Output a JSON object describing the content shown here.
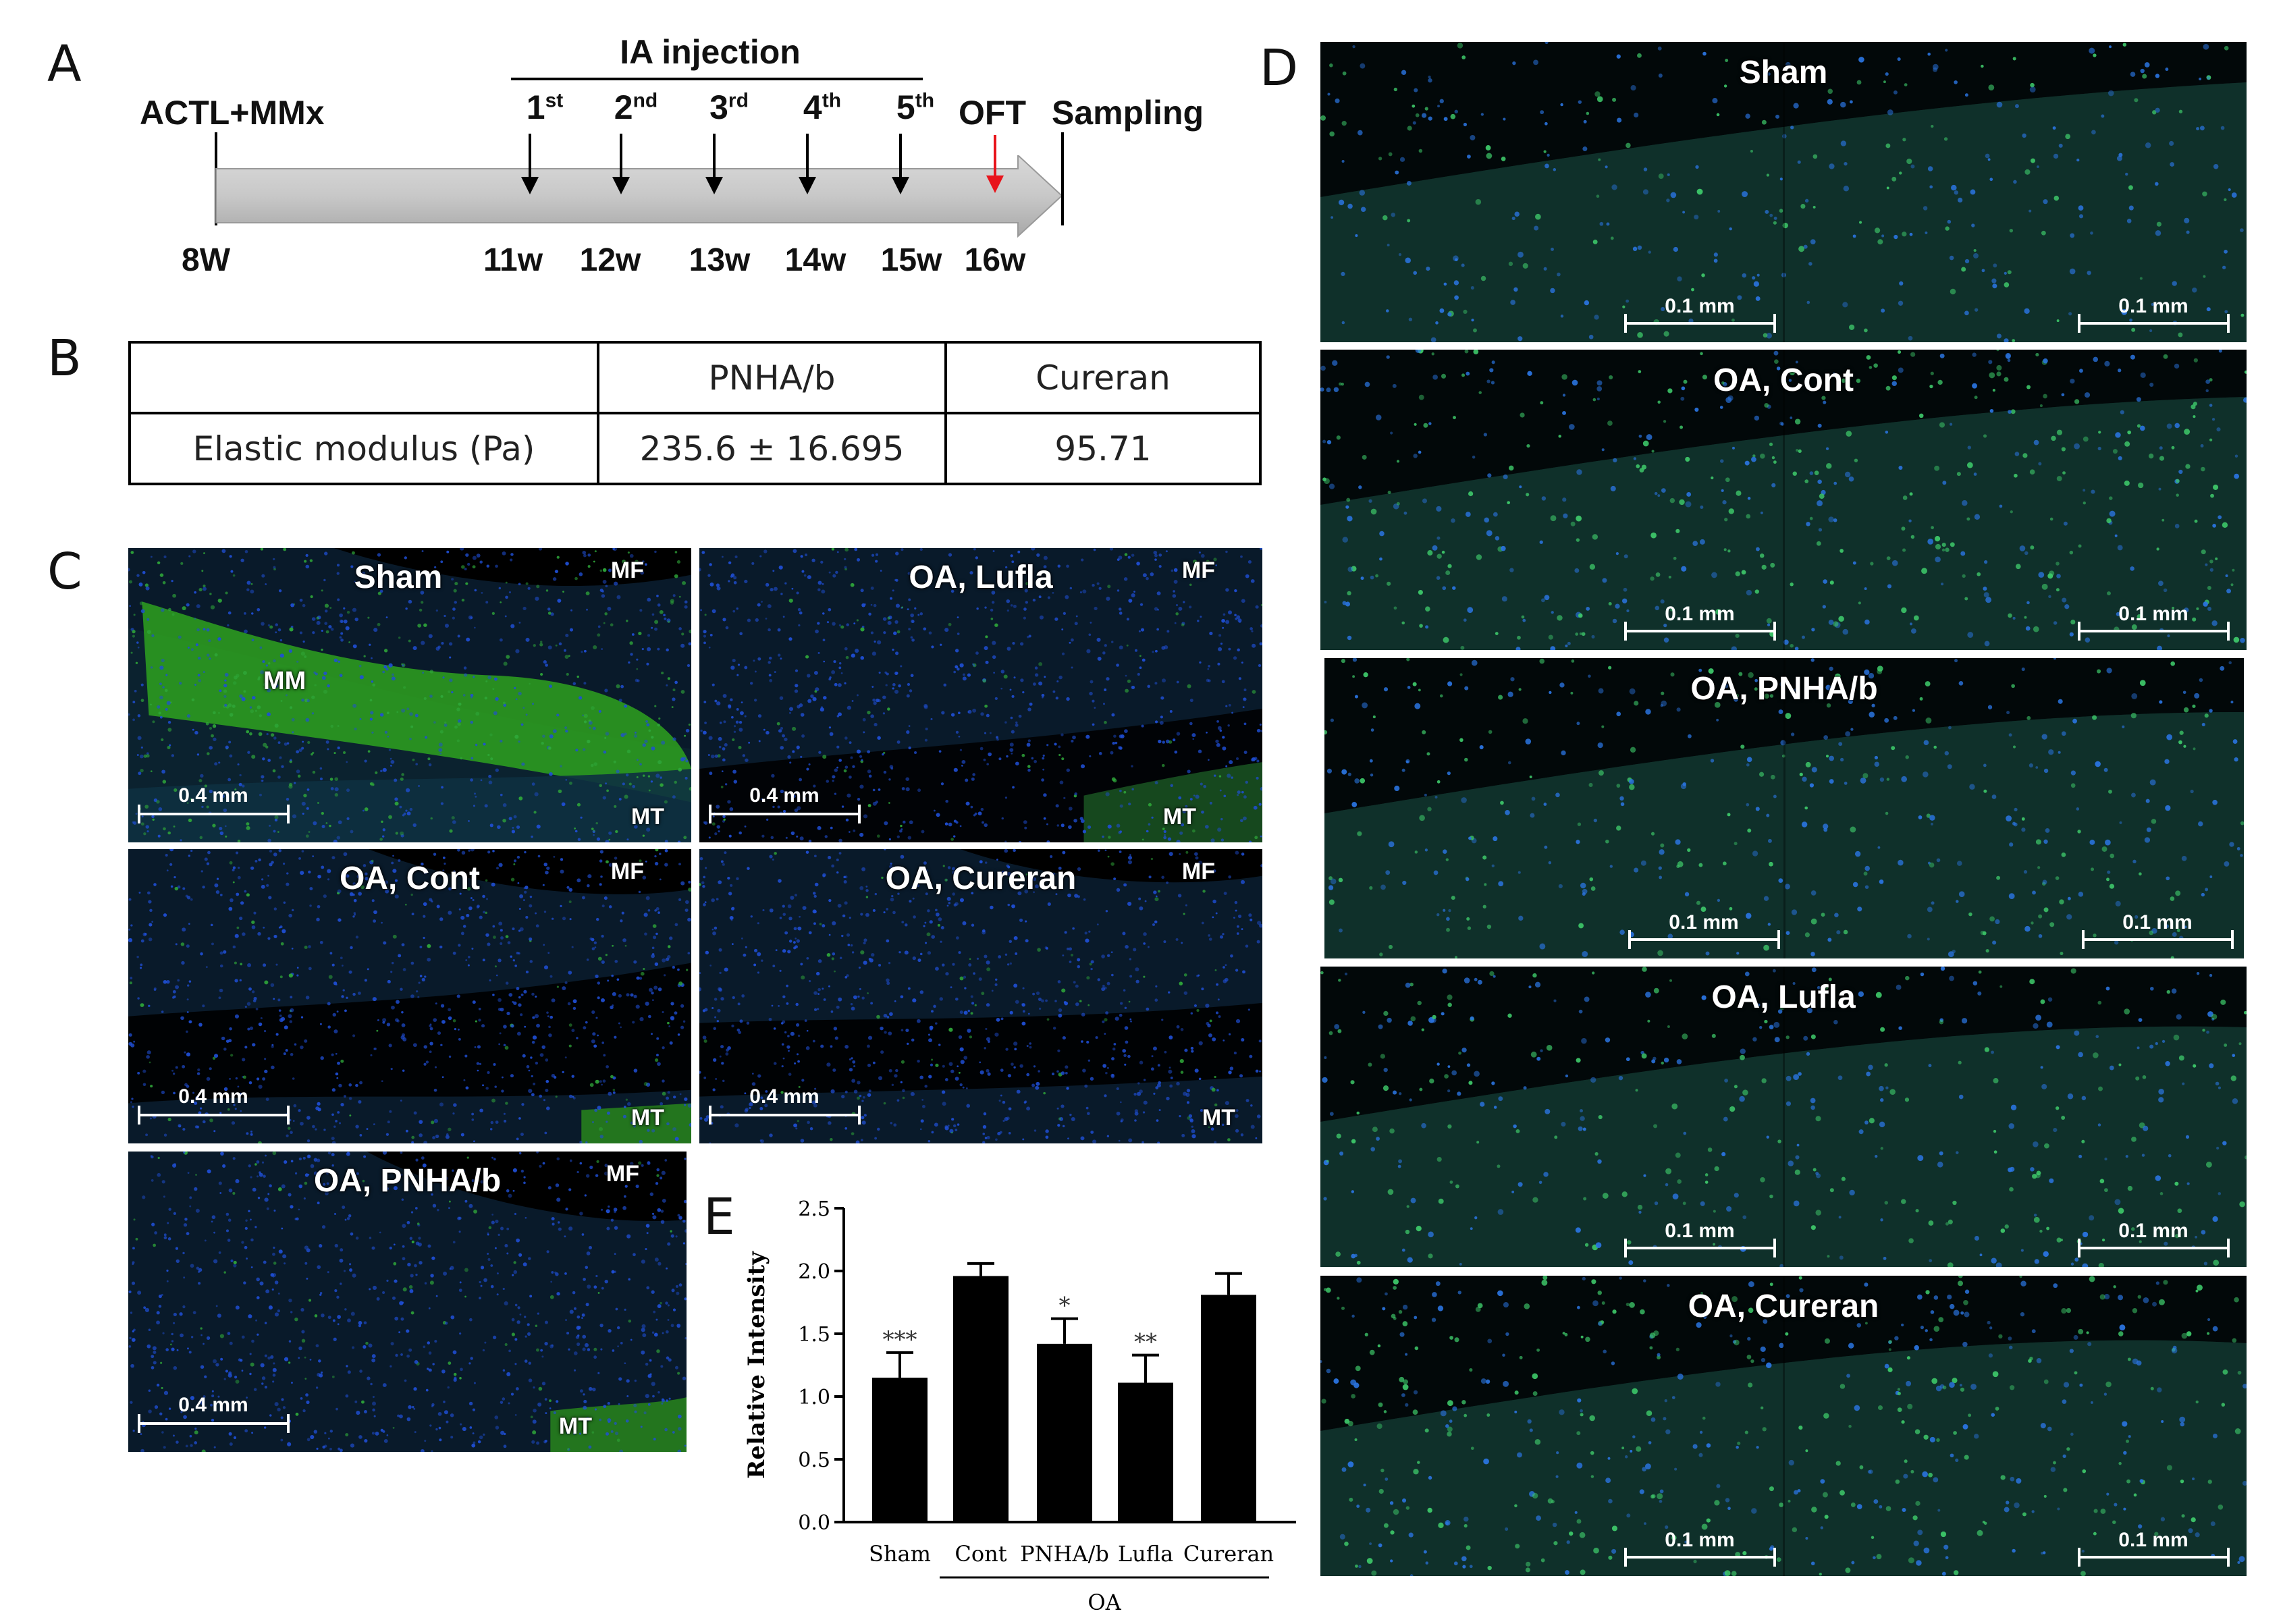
{
  "panels": {
    "a": "A",
    "b": "B",
    "c": "C",
    "d": "D",
    "e": "E"
  },
  "timeline": {
    "surgery": "ACTL+MMx",
    "injection_title": "IA injection",
    "injections": [
      {
        "num": "1",
        "sup": "st",
        "week": "11w"
      },
      {
        "num": "2",
        "sup": "nd",
        "week": "12w"
      },
      {
        "num": "3",
        "sup": "rd",
        "week": "13w"
      },
      {
        "num": "4",
        "sup": "th",
        "week": "14w"
      },
      {
        "num": "5",
        "sup": "th",
        "week": "15w"
      }
    ],
    "oft": "OFT",
    "oft_week": "16w",
    "sampling": "Sampling",
    "start_week": "8W",
    "oft_arrow_color": "#e8141b"
  },
  "table": {
    "headers": [
      "",
      "PNHA/b",
      "Cureran"
    ],
    "row_label": "Elastic modulus (Pa)",
    "values": [
      "235.6 ± 16.695",
      "95.71"
    ]
  },
  "panel_c": [
    {
      "title": "Sham",
      "mf": "MF",
      "mm": "MM",
      "mt": "MT",
      "scale": "0.4 mm",
      "tex": "sham"
    },
    {
      "title": "OA, Lufla",
      "mf": "MF",
      "mt": "MT",
      "scale": "0.4 mm",
      "tex": "lufla"
    },
    {
      "title": "OA, Cont",
      "mf": "MF",
      "mt": "MT",
      "scale": "0.4 mm",
      "tex": "cont"
    },
    {
      "title": "OA, Cureran",
      "mf": "MF",
      "mt": "MT",
      "scale": "0.4 mm",
      "tex": "cureran"
    },
    {
      "title": "OA, PNHA/b",
      "mf": "MF",
      "mt": "MT",
      "scale": "0.4 mm",
      "tex": "pnha"
    }
  ],
  "panel_d": [
    {
      "title": "Sham",
      "scale": "0.1 mm",
      "density": 0.35
    },
    {
      "title": "OA, Cont",
      "scale": "0.1 mm",
      "density": 0.9
    },
    {
      "title": "OA, PNHA/b",
      "scale": "0.1 mm",
      "density": 0.6
    },
    {
      "title": "OA, Lufla",
      "scale": "0.1 mm",
      "density": 0.55
    },
    {
      "title": "OA, Cureran",
      "scale": "0.1 mm",
      "density": 0.85
    }
  ],
  "chart_data": {
    "type": "bar",
    "categories": [
      "Sham",
      "Cont",
      "PNHA/b",
      "Lufla",
      "Cureran"
    ],
    "values": [
      1.15,
      1.96,
      1.42,
      1.11,
      1.81
    ],
    "errors": [
      0.2,
      0.1,
      0.2,
      0.22,
      0.17
    ],
    "significance": [
      "***",
      "",
      "*",
      "**",
      ""
    ],
    "group_label": "OA",
    "ylabel": "Relative Intensity",
    "xlabel": "",
    "ylim": [
      0,
      2.5
    ],
    "yticks": [
      "0.0",
      "0.5",
      "1.0",
      "1.5",
      "2.0",
      "2.5"
    ],
    "grid": false,
    "bar_color": "#000000"
  }
}
